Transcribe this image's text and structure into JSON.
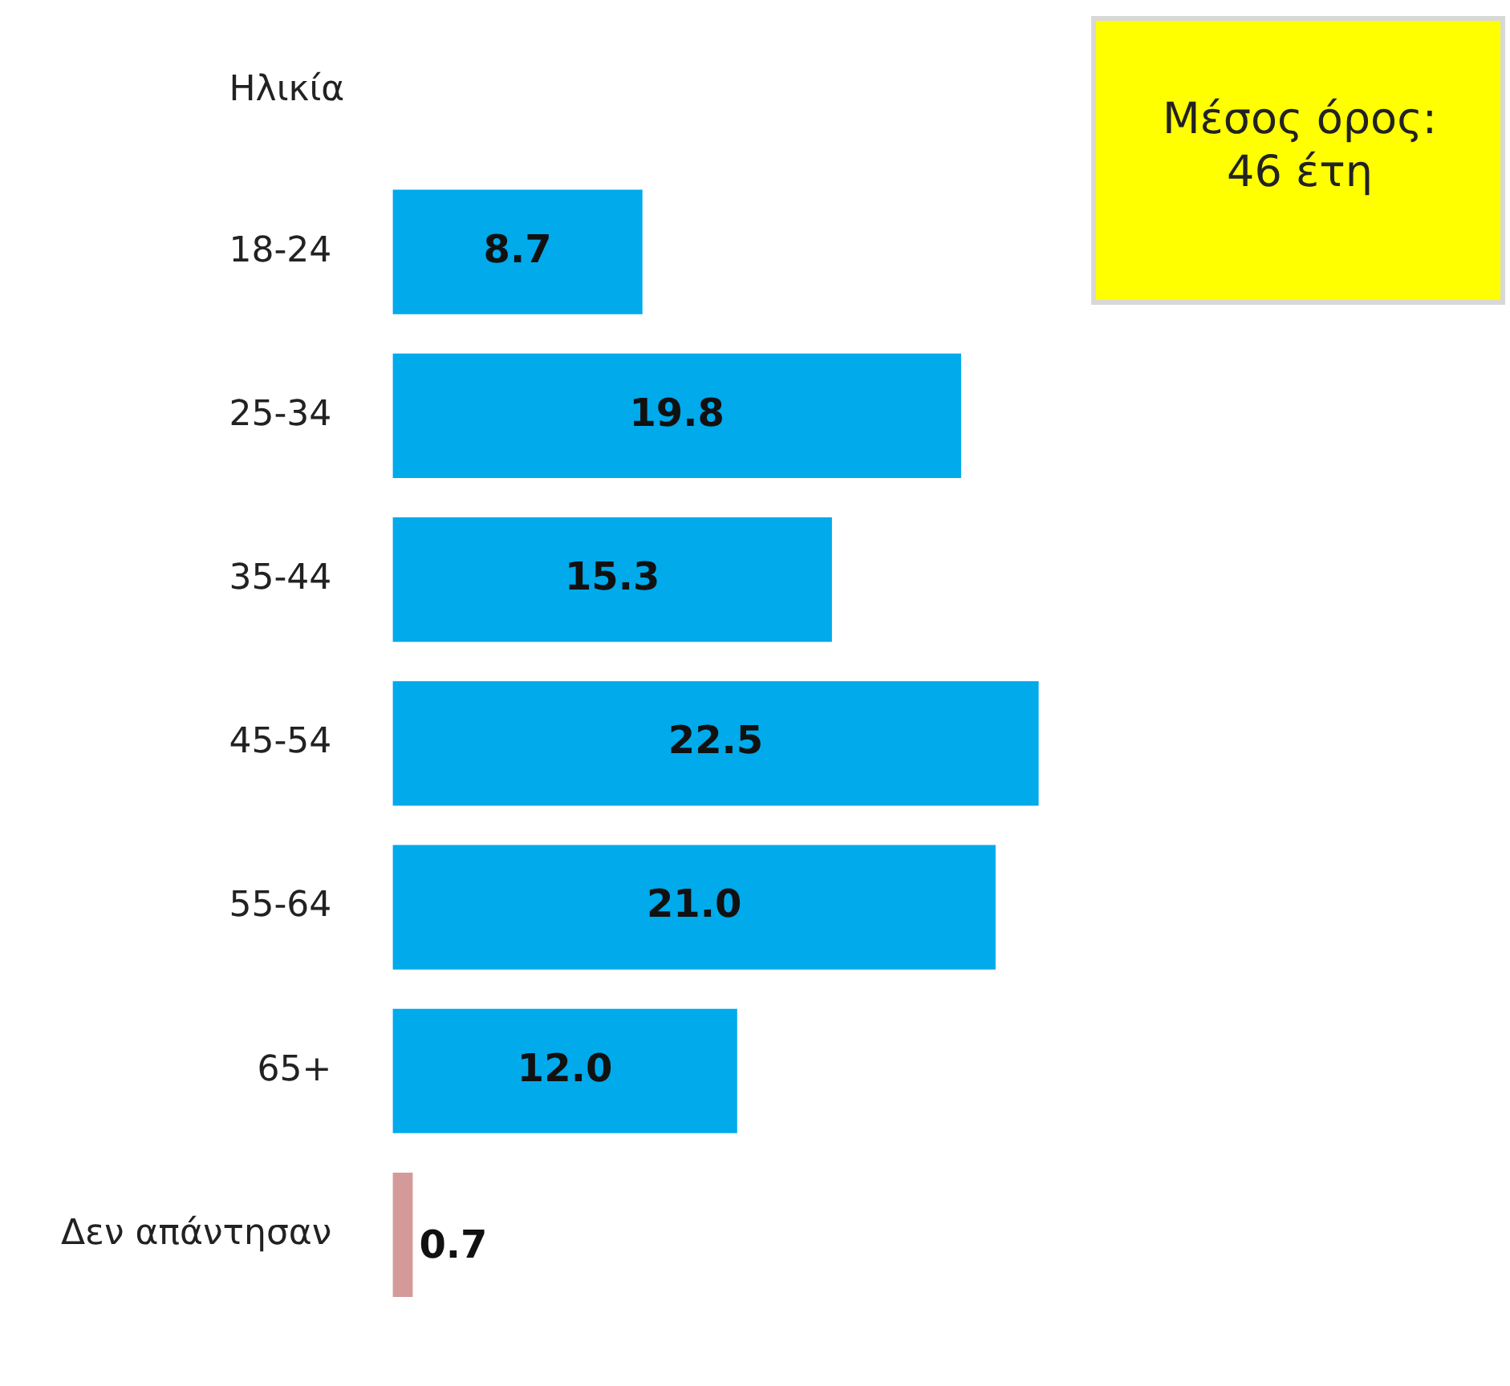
{
  "chart_data": {
    "type": "bar",
    "orientation": "horizontal",
    "title": "Ηλικία",
    "categories": [
      "18-24",
      "25-34",
      "35-44",
      "45-54",
      "55-64",
      "65+",
      "Δεν απάντησαν"
    ],
    "values": [
      8.7,
      19.8,
      15.3,
      22.5,
      21.0,
      12.0,
      0.7
    ],
    "colors": [
      "#00aaeb",
      "#00aaeb",
      "#00aaeb",
      "#00aaeb",
      "#00aaeb",
      "#00aaeb",
      "#d49a9a"
    ],
    "value_labels": [
      "8.7",
      "19.8",
      "15.3",
      "22.5",
      "21.0",
      "12.0",
      "0.7"
    ],
    "tick_labels": "y",
    "legend": false,
    "annotations": [
      "Μέσος όρος: 46 έτη"
    ]
  }
}
